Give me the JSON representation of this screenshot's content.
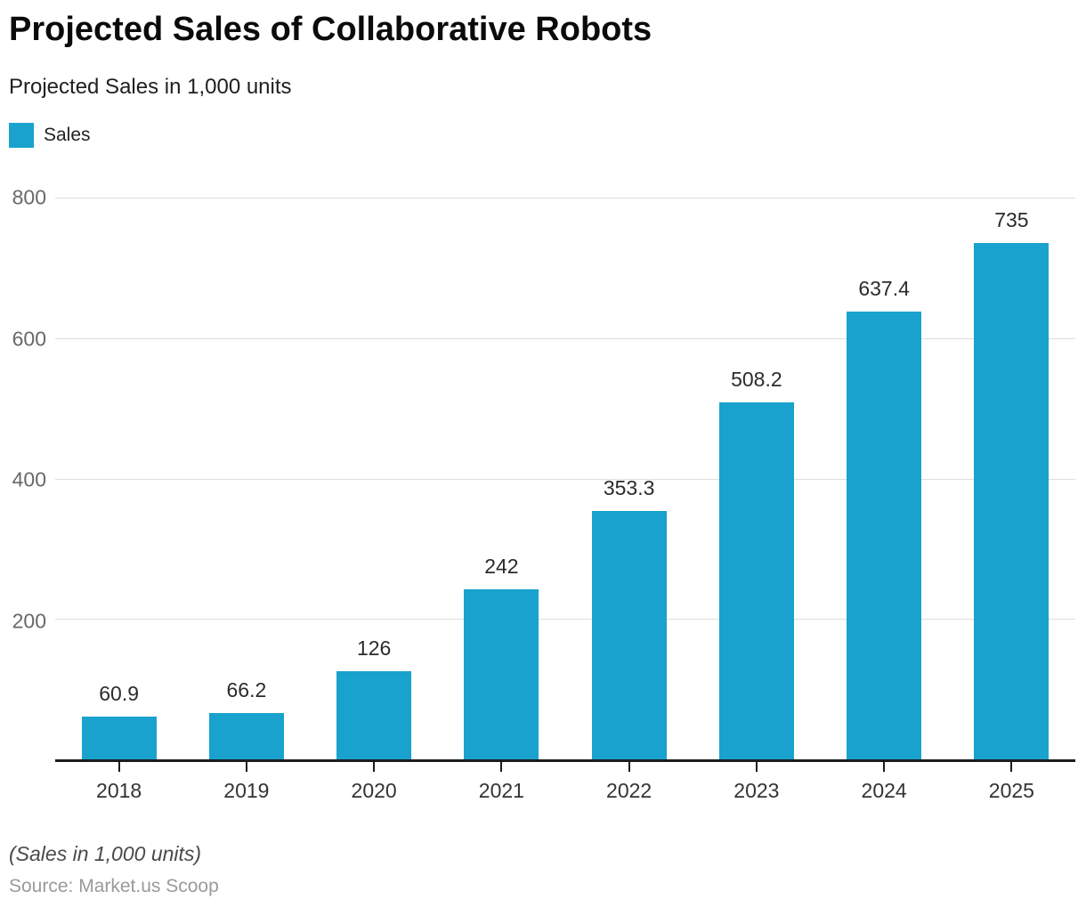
{
  "header": {
    "title": "Projected Sales of Collaborative Robots",
    "subtitle": "Projected Sales in 1,000 units"
  },
  "legend": {
    "label": "Sales",
    "swatch_color": "#19A2CE"
  },
  "chart_data": {
    "type": "bar",
    "title": "Projected Sales of Collaborative Robots",
    "subtitle": "Projected Sales in 1,000 units",
    "series_name": "Sales",
    "categories": [
      "2018",
      "2019",
      "2020",
      "2021",
      "2022",
      "2023",
      "2024",
      "2025"
    ],
    "values": [
      60.9,
      66.2,
      126,
      242,
      353.3,
      508.2,
      637.4,
      735
    ],
    "value_labels": [
      "60.9",
      "66.2",
      "126",
      "242",
      "353.3",
      "508.2",
      "637.4",
      "735"
    ],
    "xlabel": "",
    "ylabel": "",
    "ylim": [
      0,
      800
    ],
    "yticks": [
      200,
      400,
      600,
      800
    ],
    "grid": true,
    "legend_position": "top-left",
    "bar_color": "#19A2CE",
    "gridline_color": "#dedede",
    "axis_color": "#1c1c1c"
  },
  "footer": {
    "note": "(Sales in 1,000 units)",
    "source": "Source: Market.us Scoop"
  }
}
